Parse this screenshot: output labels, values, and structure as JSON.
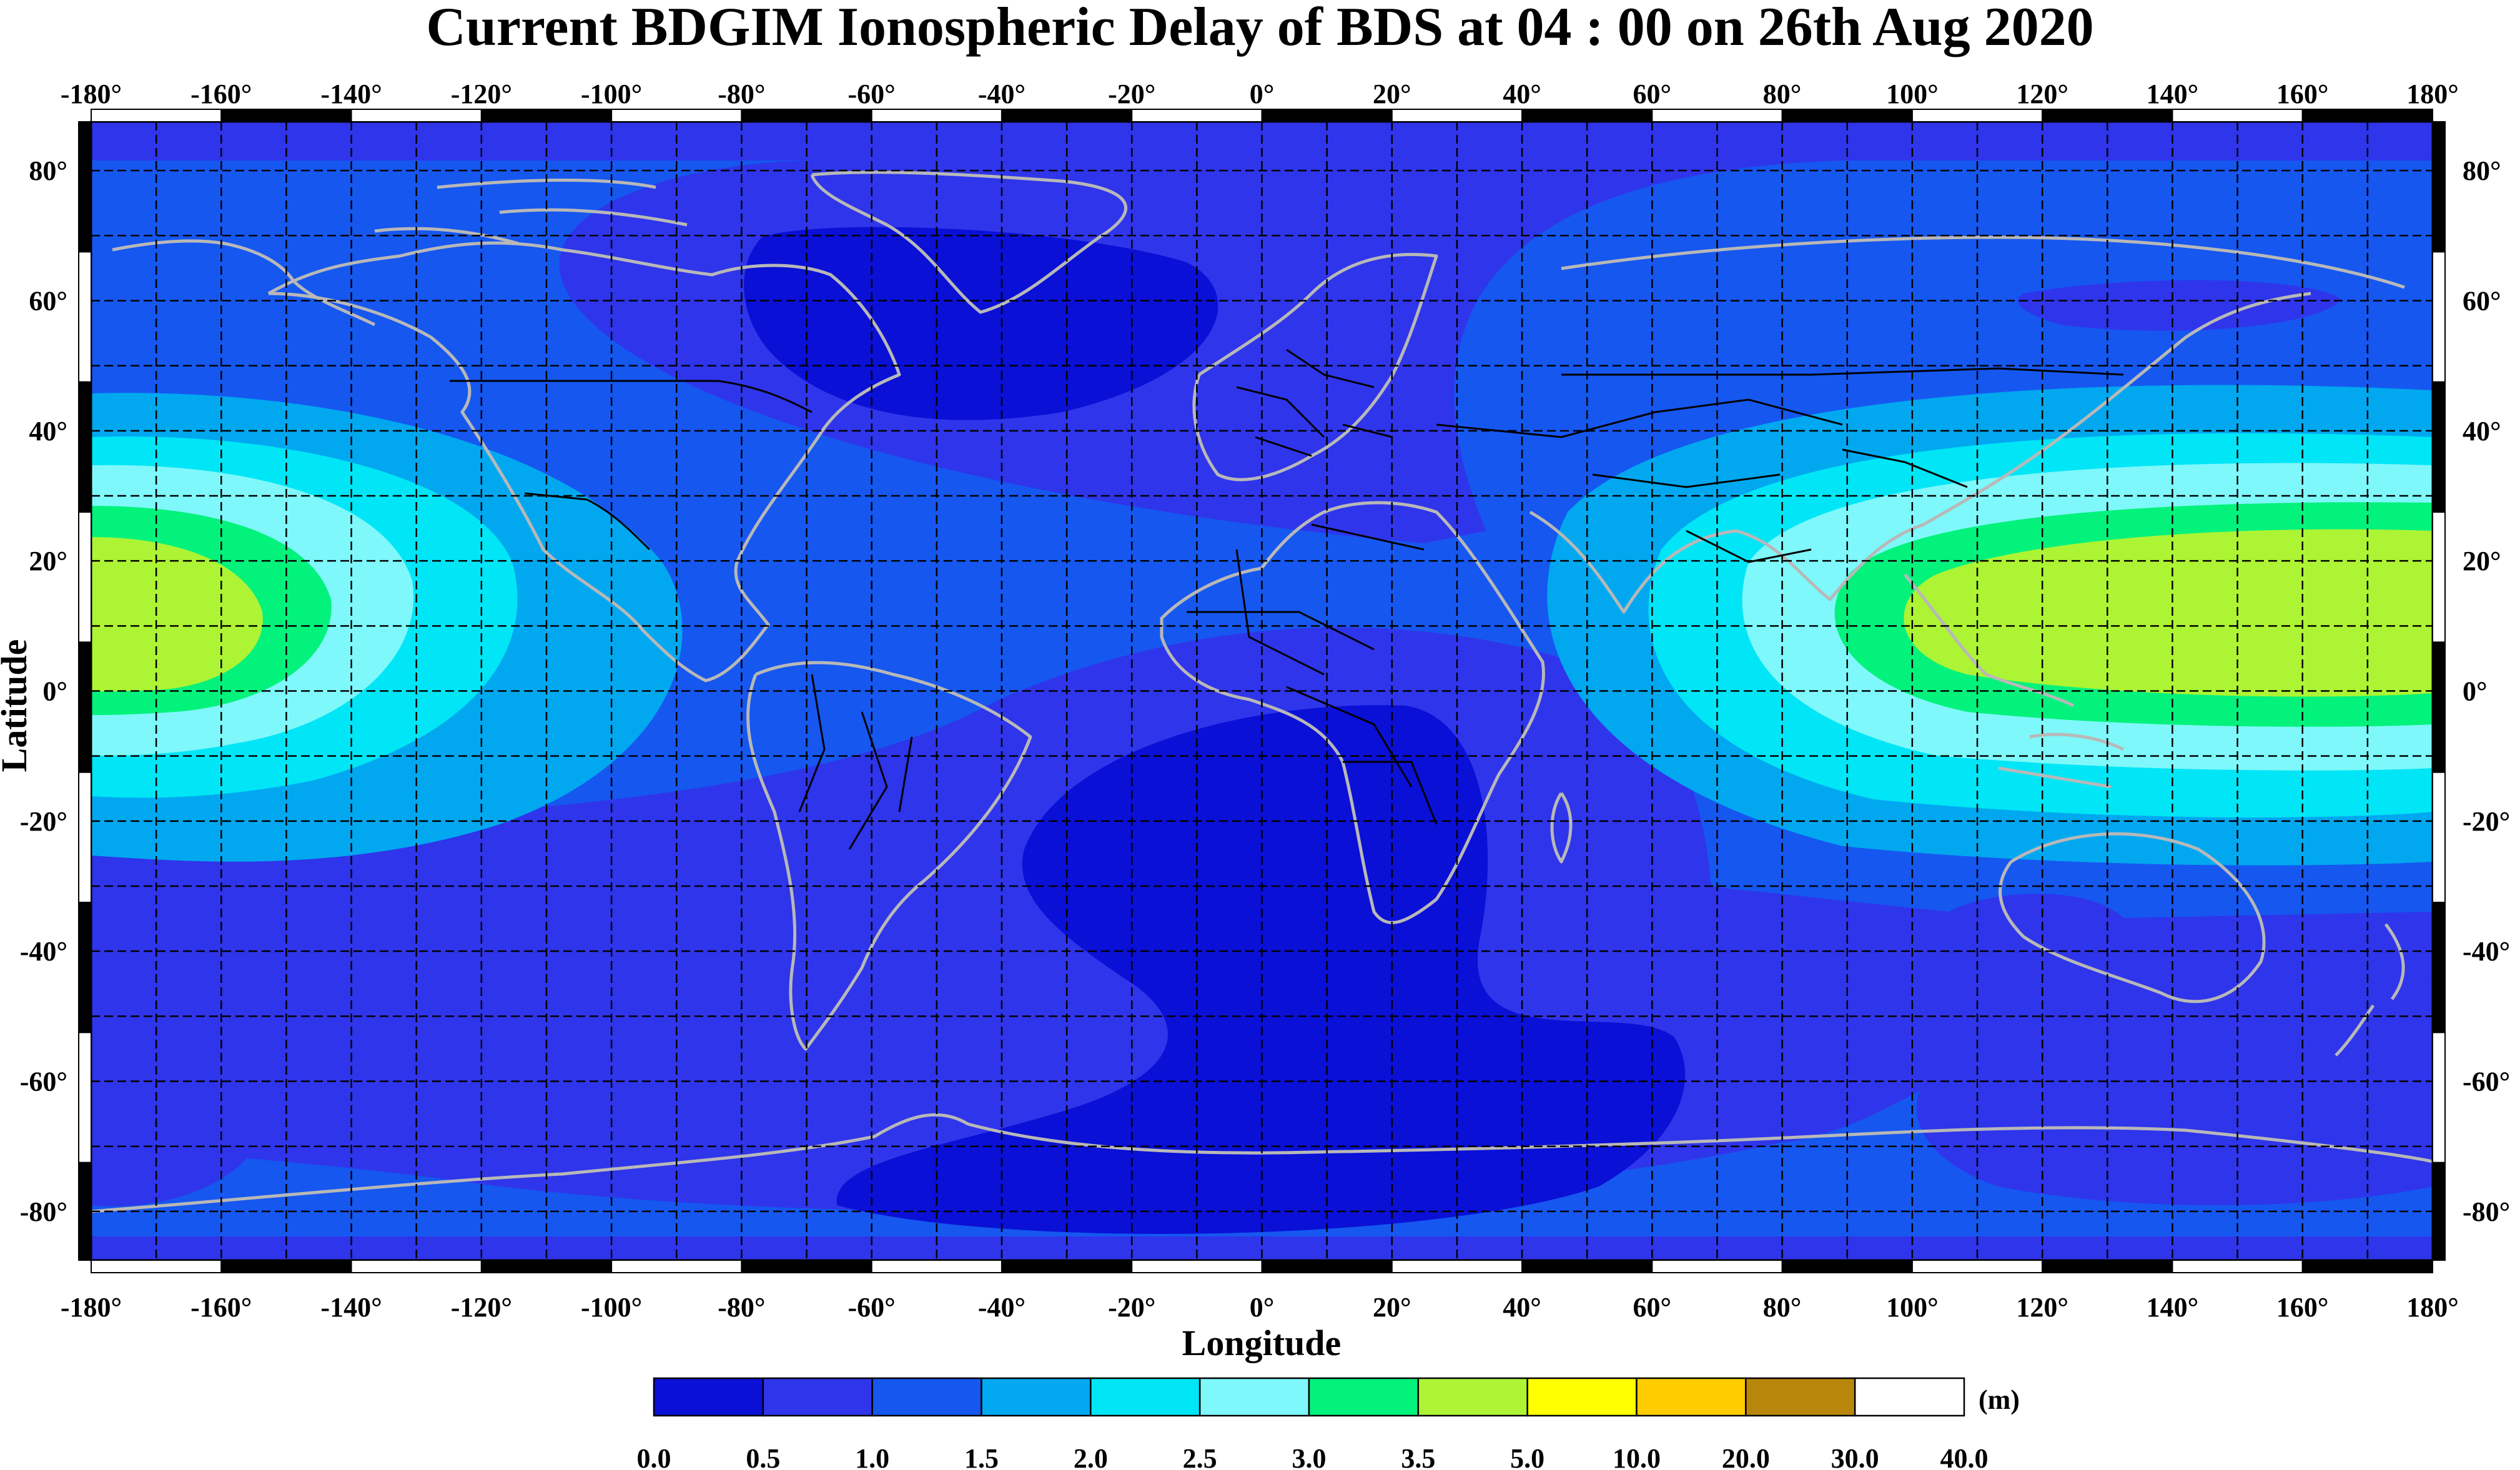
{
  "title": "Current BDGIM Ionospheric Delay of BDS at 04 : 00 on 26th Aug 2020",
  "chart_data": {
    "type": "heatmap",
    "title": "Current BDGIM Ionospheric Delay of BDS at 04 : 00 on 26th Aug 2020",
    "xlabel": "Longitude",
    "ylabel": "Latitude",
    "xlim": [
      -180,
      180
    ],
    "ylim": [
      -87.5,
      87.5
    ],
    "x_ticks": [
      "-180°",
      "-160°",
      "-140°",
      "-120°",
      "-100°",
      "-80°",
      "-60°",
      "-40°",
      "-20°",
      "0°",
      "20°",
      "40°",
      "60°",
      "80°",
      "100°",
      "120°",
      "140°",
      "160°",
      "180°"
    ],
    "y_ticks": [
      "80°",
      "60°",
      "40°",
      "20°",
      "0°",
      "-20°",
      "-40°",
      "-60°",
      "-80°"
    ],
    "grid": true,
    "grid_step_degrees": 10,
    "colorbar": {
      "unit": "(m)",
      "levels": [
        "0.0",
        "0.5",
        "1.0",
        "1.5",
        "2.0",
        "2.5",
        "3.0",
        "3.5",
        "5.0",
        "10.0",
        "20.0",
        "30.0",
        "40.0"
      ],
      "colors": [
        "#0a10d6",
        "#2f35ea",
        "#1657f0",
        "#01a8f0",
        "#00e6f6",
        "#7ef8fa",
        "#03f27c",
        "#adf434",
        "#ffff00",
        "#ffcc00",
        "#b8860b",
        "#ffffff"
      ]
    },
    "contour_features": [
      {
        "name": "equatorial-peak-east",
        "center_lon": 170,
        "center_lat": 10,
        "max_level": "3.5-5.0"
      },
      {
        "name": "equatorial-peak-west",
        "center_lon": -180,
        "center_lat": 10,
        "max_level": "3.5-5.0"
      },
      {
        "name": "north-atlantic-low",
        "center_lon": -50,
        "center_lat": 65,
        "min_level": "0.0-0.5"
      },
      {
        "name": "south-atlantic-low",
        "center_lon": 0,
        "center_lat": -45,
        "min_level": "0.0-0.5"
      },
      {
        "name": "background",
        "level": "0.5-1.0"
      }
    ]
  }
}
